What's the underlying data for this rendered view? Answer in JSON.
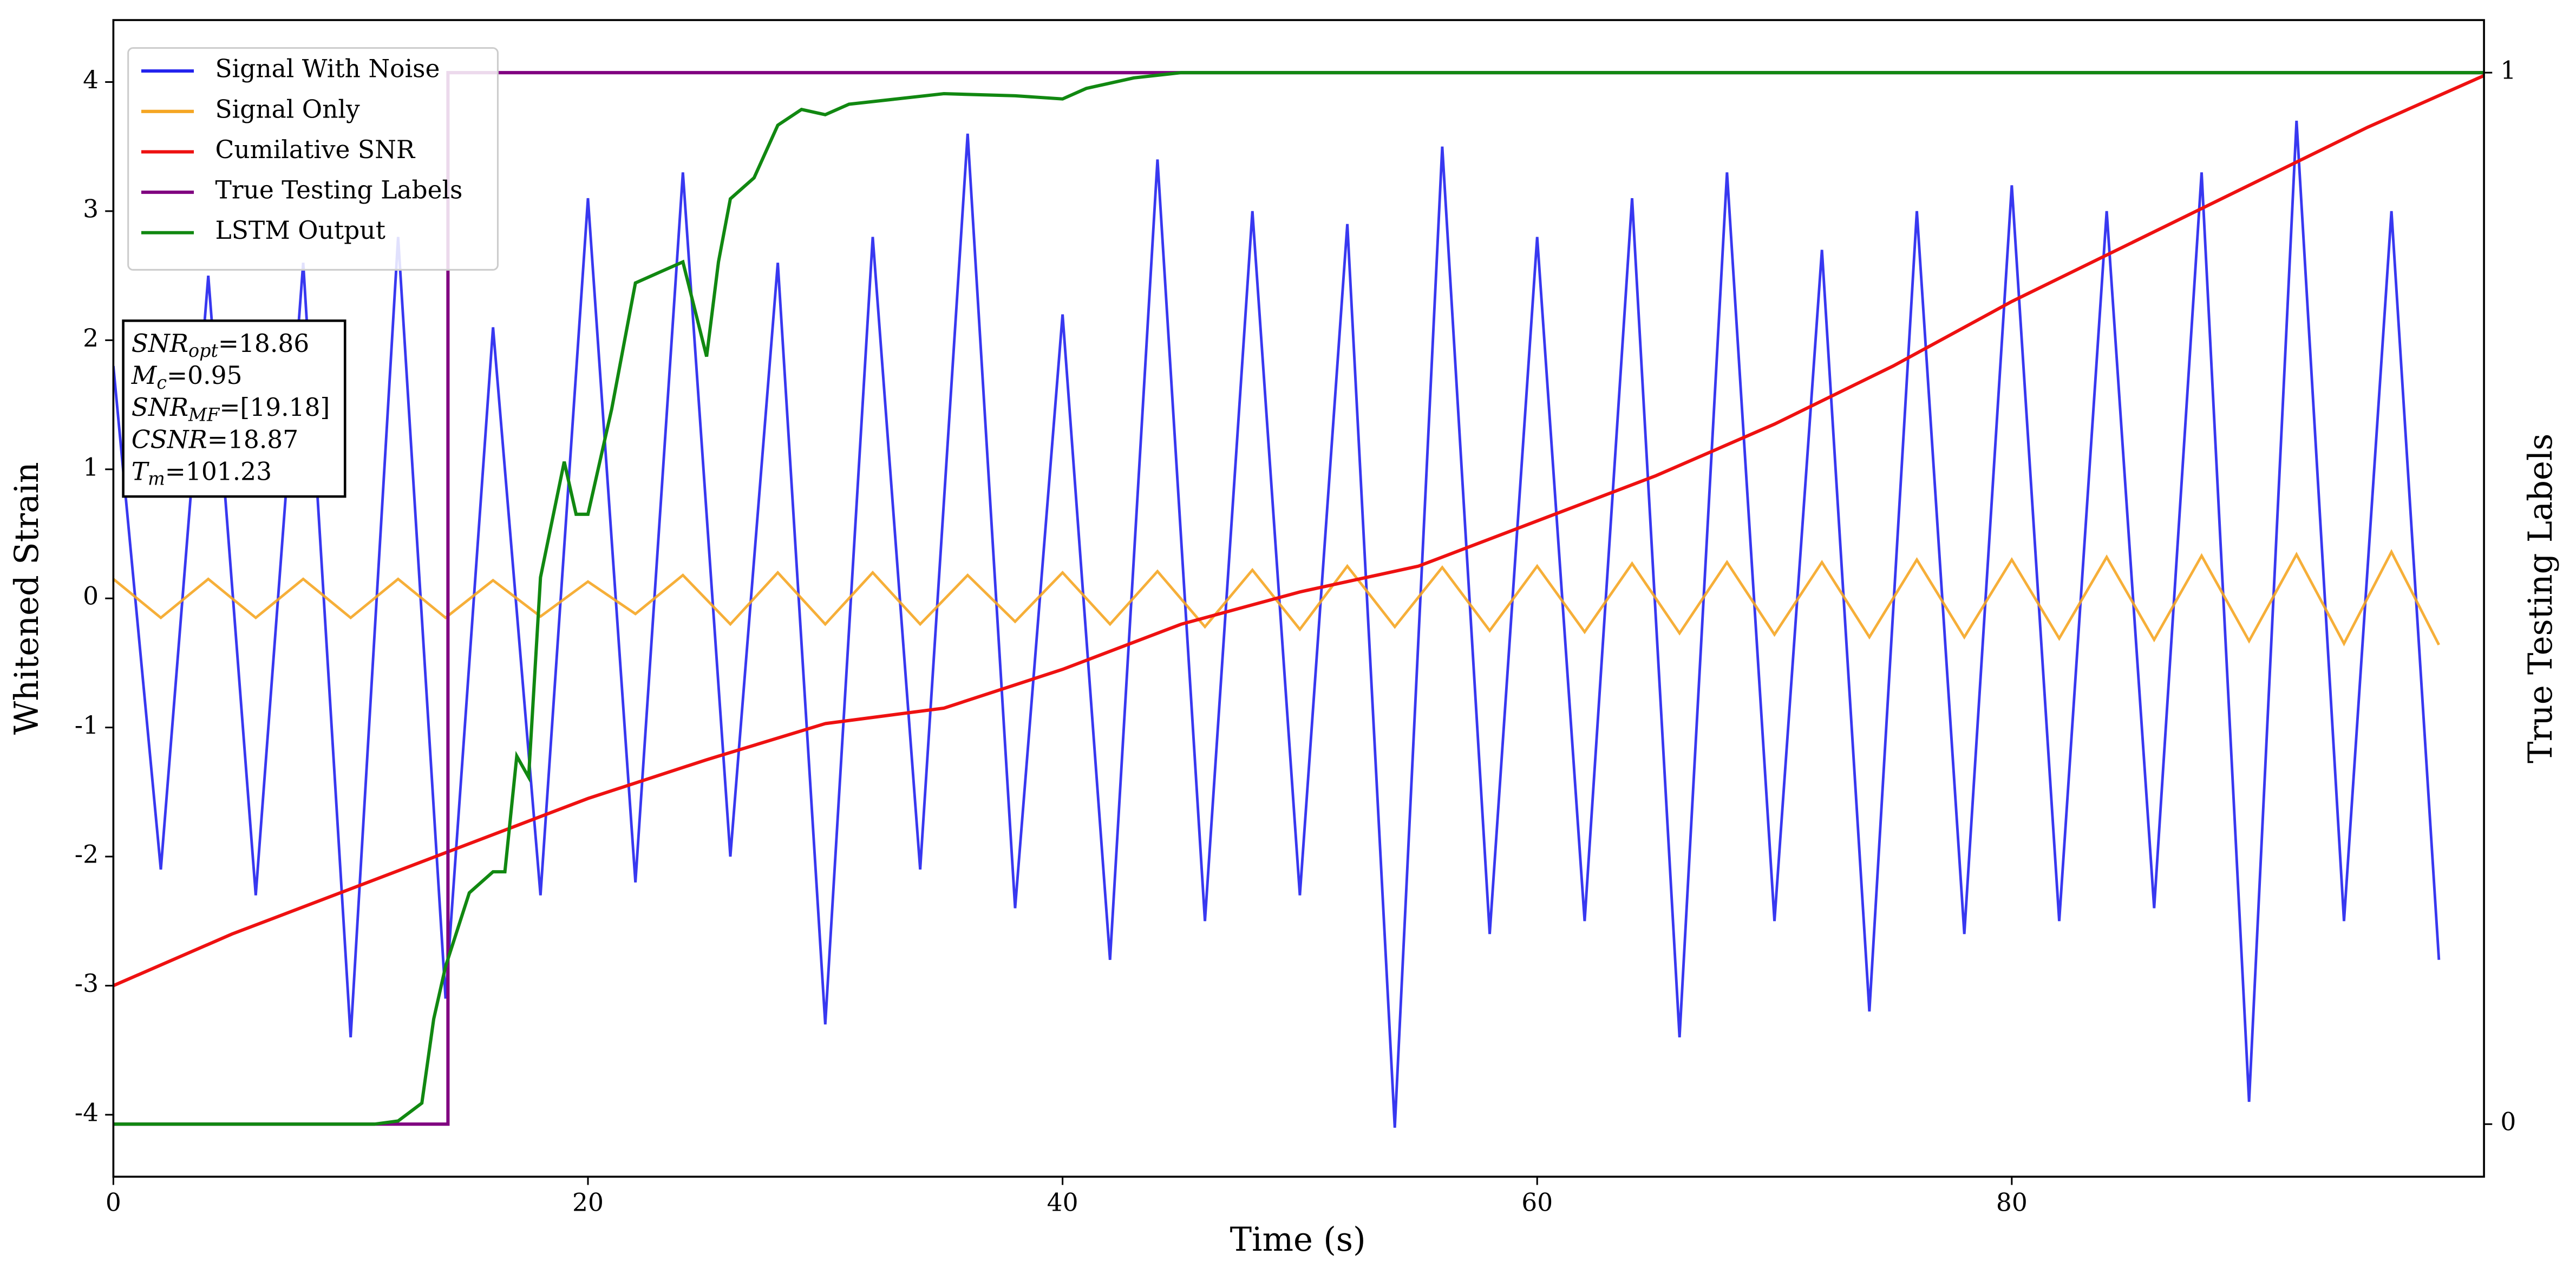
{
  "chart_data": {
    "type": "line",
    "x_label": "Time (s)",
    "y_label": "Whitened Strain",
    "y2_label": "True Testing Labels",
    "xlim": [
      0,
      99.9
    ],
    "xticks": [
      0,
      20,
      40,
      60,
      80
    ],
    "ylim": [
      -4.48,
      4.48
    ],
    "yticks": [
      -4,
      -3,
      -2,
      -1,
      0,
      1,
      2,
      3,
      4
    ],
    "y2lim": [
      -0.05,
      1.05
    ],
    "y2ticks": [
      0,
      1
    ],
    "legend": "upper left",
    "grid": false,
    "x": [
      0,
      2,
      4,
      6,
      8,
      10,
      12,
      14,
      16,
      18,
      20,
      22,
      24,
      26,
      28,
      30,
      32,
      34,
      36,
      38,
      40,
      42,
      44,
      46,
      48,
      50,
      52,
      54,
      56,
      58,
      60,
      62,
      64,
      66,
      68,
      70,
      72,
      74,
      76,
      78,
      80,
      82,
      84,
      86,
      88,
      90,
      92,
      94,
      96,
      98
    ],
    "series": [
      {
        "name": "Signal With Noise",
        "color": "#2222ee",
        "values": [
          1.8,
          -2.1,
          2.5,
          -2.3,
          2.6,
          -3.4,
          2.8,
          -3.1,
          2.1,
          -2.3,
          3.1,
          -2.2,
          3.3,
          -2.0,
          2.6,
          -3.3,
          2.8,
          -2.1,
          3.6,
          -2.4,
          2.2,
          -2.8,
          3.4,
          -2.5,
          3.0,
          -2.3,
          2.9,
          -4.1,
          3.5,
          -2.6,
          2.8,
          -2.5,
          3.1,
          -3.4,
          3.3,
          -2.5,
          2.7,
          -3.2,
          3.0,
          -2.6,
          3.2,
          -2.5,
          3.0,
          -2.4,
          3.3,
          -3.9,
          3.7,
          -2.5,
          3.0,
          -2.8
        ]
      },
      {
        "name": "Signal Only",
        "color": "#f5a623",
        "values": [
          0.15,
          -0.15,
          0.15,
          -0.15,
          0.15,
          -0.15,
          0.15,
          -0.15,
          0.14,
          -0.14,
          0.13,
          -0.12,
          0.18,
          -0.2,
          0.2,
          -0.2,
          0.2,
          -0.2,
          0.18,
          -0.18,
          0.2,
          -0.2,
          0.21,
          -0.22,
          0.22,
          -0.24,
          0.25,
          -0.22,
          0.24,
          -0.25,
          0.25,
          -0.26,
          0.27,
          -0.27,
          0.28,
          -0.28,
          0.28,
          -0.3,
          0.3,
          -0.3,
          0.3,
          -0.31,
          0.32,
          -0.32,
          0.33,
          -0.33,
          0.34,
          -0.35,
          0.36,
          -0.36
        ]
      },
      {
        "name": "Cumilative SNR",
        "color": "#ee1111",
        "x": [
          0,
          5,
          10,
          15,
          20,
          25,
          30,
          35,
          40,
          45,
          50,
          55,
          60,
          65,
          70,
          75,
          80,
          85,
          90,
          95,
          99.9
        ],
        "values": [
          -3.0,
          -2.6,
          -2.25,
          -1.9,
          -1.55,
          -1.25,
          -0.97,
          -0.85,
          -0.55,
          -0.2,
          0.05,
          0.25,
          0.6,
          0.95,
          1.35,
          1.8,
          2.3,
          2.75,
          3.2,
          3.65,
          4.05
        ]
      },
      {
        "name": "True Testing Labels",
        "color": "#800080",
        "axis": "y2",
        "x": [
          0,
          14.1,
          14.1,
          99.9
        ],
        "values": [
          0,
          0,
          1,
          1
        ]
      },
      {
        "name": "LSTM Output",
        "color": "#118811",
        "axis": "y2",
        "x": [
          0,
          11,
          12,
          13,
          13.5,
          14,
          15,
          16,
          16.5,
          17,
          17.5,
          18,
          19,
          19.5,
          20,
          21,
          22,
          23,
          24,
          25,
          25.5,
          26,
          27,
          28,
          29,
          30,
          31,
          33,
          35,
          38,
          40,
          41,
          43,
          45,
          49,
          99.9
        ],
        "values": [
          0,
          0,
          0.003,
          0.02,
          0.1,
          0.15,
          0.22,
          0.24,
          0.24,
          0.35,
          0.33,
          0.52,
          0.63,
          0.58,
          0.58,
          0.68,
          0.8,
          0.81,
          0.82,
          0.73,
          0.82,
          0.88,
          0.9,
          0.95,
          0.965,
          0.96,
          0.97,
          0.975,
          0.98,
          0.978,
          0.975,
          0.985,
          0.995,
          1,
          1,
          1
        ]
      }
    ],
    "annotations": [
      {
        "symbol": "SNR",
        "sub": "opt",
        "text": "=18.86"
      },
      {
        "symbol": "M",
        "sub": "c",
        "text": "=0.95"
      },
      {
        "symbol": "SNR",
        "sub": "MF",
        "text": "=[19.18]"
      },
      {
        "symbol": "CSNR",
        "text": "=18.87"
      },
      {
        "symbol": "T",
        "sub": "m",
        "text": "=101.23"
      }
    ]
  }
}
